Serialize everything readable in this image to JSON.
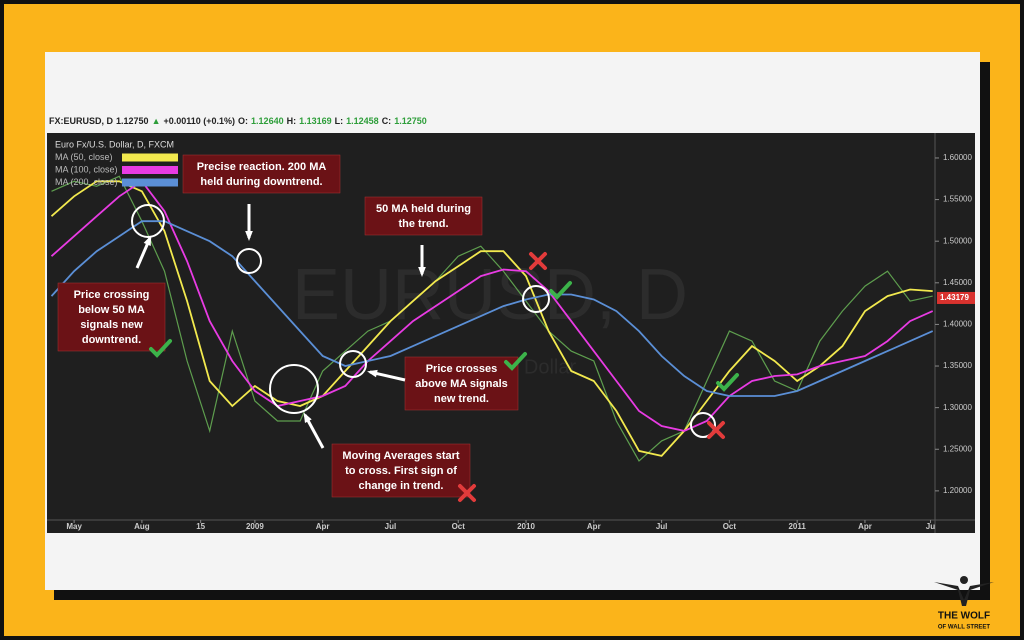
{
  "header": {
    "parts": [
      "FX:EURUSD, D",
      "1.12750",
      "▲",
      "+0.00110 (+0.1%)",
      "O:",
      "1.12640",
      "H:",
      "1.13169",
      "L:",
      "1.12458",
      "C:",
      "1.12750"
    ]
  },
  "watermark": "EURUSD, D",
  "watermark_sub": "Euro Fx/U.S. Dollar",
  "logo": [
    "THE WOLF",
    "OF WALL STREET"
  ],
  "annotations": [
    [
      "Precise reaction. 200 MA",
      "held during downtrend."
    ],
    [
      "50 MA held during",
      "the trend."
    ],
    [
      "Price crossing",
      "below 50 MA",
      "signals new",
      "downtrend."
    ],
    [
      "Price crosses",
      "above MA signals",
      "new trend."
    ],
    [
      "Moving Averages start",
      "to cross. First sign of",
      "change in trend."
    ]
  ],
  "chart_data": {
    "type": "line",
    "legend_title": "Euro Fx/U.S. Dollar, D, FXCM",
    "x": [
      0,
      1,
      2,
      3,
      4,
      5,
      6,
      7,
      8,
      9,
      10,
      11,
      12,
      13,
      14,
      15,
      16,
      17,
      18,
      19,
      20,
      21,
      22,
      23,
      24,
      25,
      26,
      27,
      28,
      29,
      30,
      31,
      32,
      33,
      34,
      35,
      36,
      37,
      38,
      39
    ],
    "series": [
      {
        "name": "Euro Fx/U.S. Dollar, D, FXCM",
        "color": "#5e9e4e",
        "values": [
          1.56,
          1.572,
          1.566,
          1.578,
          1.524,
          1.464,
          1.356,
          1.272,
          1.392,
          1.308,
          1.284,
          1.284,
          1.344,
          1.368,
          1.392,
          1.404,
          1.428,
          1.452,
          1.482,
          1.494,
          1.464,
          1.428,
          1.392,
          1.368,
          1.356,
          1.284,
          1.236,
          1.26,
          1.272,
          1.332,
          1.392,
          1.38,
          1.332,
          1.32,
          1.38,
          1.416,
          1.446,
          1.464,
          1.428,
          1.434
        ]
      },
      {
        "name": "MA (50, close)",
        "color": "#f2e94e",
        "values": [
          1.53,
          1.554,
          1.572,
          1.572,
          1.56,
          1.512,
          1.428,
          1.332,
          1.302,
          1.326,
          1.308,
          1.302,
          1.314,
          1.344,
          1.374,
          1.404,
          1.428,
          1.452,
          1.47,
          1.488,
          1.488,
          1.458,
          1.392,
          1.344,
          1.332,
          1.296,
          1.248,
          1.242,
          1.272,
          1.308,
          1.344,
          1.374,
          1.356,
          1.332,
          1.35,
          1.374,
          1.416,
          1.434,
          1.442,
          1.44
        ]
      },
      {
        "name": "MA (100, close)",
        "color": "#e83be3",
        "values": [
          1.482,
          1.506,
          1.53,
          1.554,
          1.572,
          1.536,
          1.476,
          1.404,
          1.356,
          1.32,
          1.302,
          1.308,
          1.314,
          1.326,
          1.356,
          1.38,
          1.404,
          1.422,
          1.44,
          1.458,
          1.466,
          1.464,
          1.44,
          1.404,
          1.368,
          1.332,
          1.296,
          1.278,
          1.272,
          1.284,
          1.314,
          1.332,
          1.338,
          1.34,
          1.35,
          1.356,
          1.362,
          1.38,
          1.404,
          1.416
        ]
      },
      {
        "name": "MA (200, close)",
        "color": "#5b8fd6",
        "values": [
          1.434,
          1.464,
          1.488,
          1.506,
          1.524,
          1.524,
          1.512,
          1.5,
          1.482,
          1.452,
          1.422,
          1.392,
          1.362,
          1.35,
          1.356,
          1.362,
          1.374,
          1.386,
          1.398,
          1.41,
          1.422,
          1.43,
          1.436,
          1.436,
          1.43,
          1.416,
          1.392,
          1.362,
          1.338,
          1.32,
          1.314,
          1.314,
          1.314,
          1.32,
          1.332,
          1.344,
          1.356,
          1.368,
          1.38,
          1.392
        ]
      }
    ],
    "xlim": [
      -0.2,
      39.1
    ],
    "xticks": [
      {
        "value": 1,
        "label": "May"
      },
      {
        "value": 4,
        "label": "Aug"
      },
      {
        "value": 6.6,
        "label": "15"
      },
      {
        "value": 9,
        "label": "2009"
      },
      {
        "value": 12,
        "label": "Apr"
      },
      {
        "value": 15,
        "label": "Jul"
      },
      {
        "value": 18,
        "label": "Oct"
      },
      {
        "value": 21,
        "label": "2010"
      },
      {
        "value": 24,
        "label": "Apr"
      },
      {
        "value": 27,
        "label": "Jul"
      },
      {
        "value": 30,
        "label": "Oct"
      },
      {
        "value": 33,
        "label": "2011"
      },
      {
        "value": 36,
        "label": "Apr"
      },
      {
        "value": 38.9,
        "label": "Ju"
      }
    ],
    "ylim": [
      1.165,
      1.63
    ],
    "yticks": [
      {
        "value": 1.2,
        "label": "1.20000"
      },
      {
        "value": 1.25,
        "label": "1.25000"
      },
      {
        "value": 1.3,
        "label": "1.30000"
      },
      {
        "value": 1.35,
        "label": "1.35000"
      },
      {
        "value": 1.4,
        "label": "1.40000"
      },
      {
        "value": 1.45,
        "label": "1.45000"
      },
      {
        "value": 1.5,
        "label": "1.50000"
      },
      {
        "value": 1.55,
        "label": "1.55000"
      },
      {
        "value": 1.6,
        "label": "1.60000"
      }
    ],
    "last_price": 1.43179,
    "grid": false
  }
}
